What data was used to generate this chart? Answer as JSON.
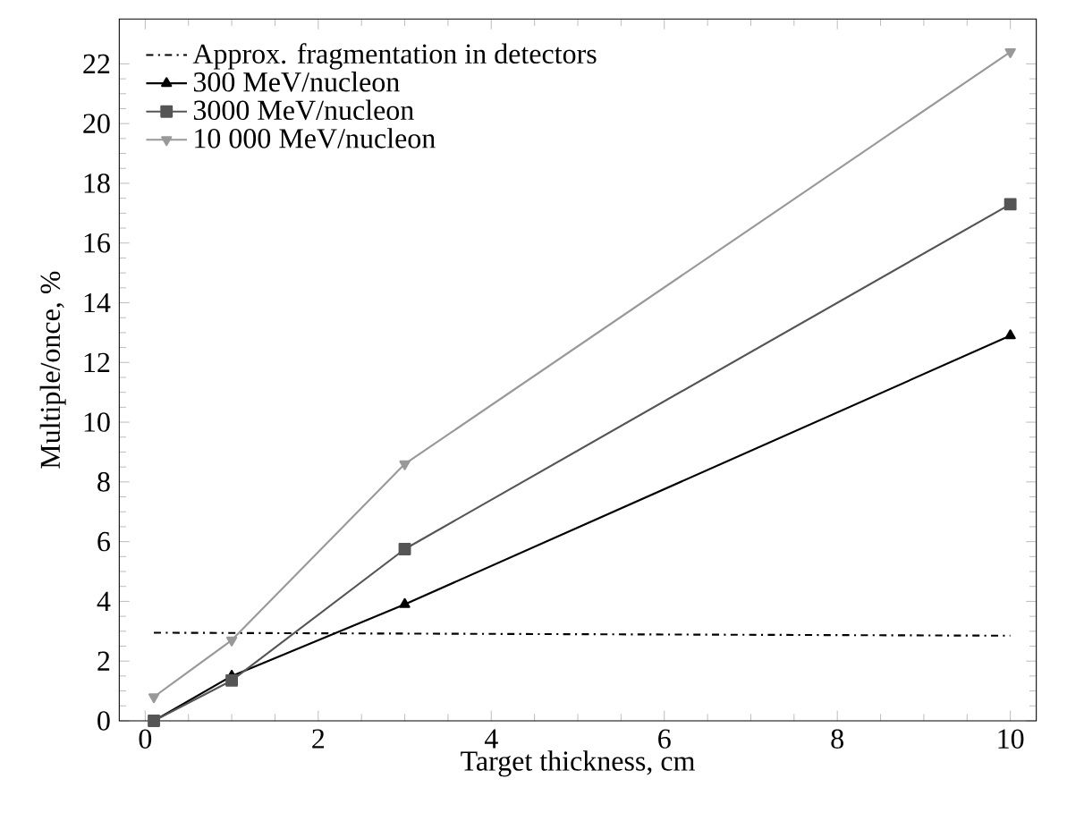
{
  "chart_data": {
    "type": "line",
    "xlabel": "Target thickness, cm",
    "ylabel": "Multiple/once, %",
    "xlim": [
      -0.3,
      10.3
    ],
    "ylim": [
      0,
      23.5
    ],
    "xticks": [
      0,
      2,
      4,
      6,
      8,
      10
    ],
    "yticks": [
      0,
      2,
      4,
      6,
      8,
      10,
      12,
      14,
      16,
      18,
      20,
      22
    ],
    "legend": "top left",
    "series": [
      {
        "name": "Approx. fragmentation in detectors",
        "color": "#000000",
        "x": [
          0.1,
          10
        ],
        "values": [
          2.95,
          2.85
        ],
        "line_style": "dashed",
        "marker": "none"
      },
      {
        "name": "300 MeV/nucleon",
        "color": "#000000",
        "x": [
          0.1,
          1,
          3,
          10
        ],
        "values": [
          0,
          1.5,
          3.9,
          12.9
        ],
        "line_style": "solid",
        "marker": "triangle"
      },
      {
        "name": "3000 MeV/nucleon",
        "color": "#555555",
        "x": [
          0.1,
          1,
          3,
          10
        ],
        "values": [
          0,
          1.35,
          5.75,
          17.3
        ],
        "line_style": "solid",
        "marker": "square"
      },
      {
        "name": "10 000 MeV/nucleon",
        "color": "#999999",
        "x": [
          0.1,
          1,
          3,
          10
        ],
        "values": [
          0.8,
          2.7,
          8.6,
          22.4
        ],
        "line_style": "solid",
        "marker": "triangle-down"
      }
    ]
  }
}
